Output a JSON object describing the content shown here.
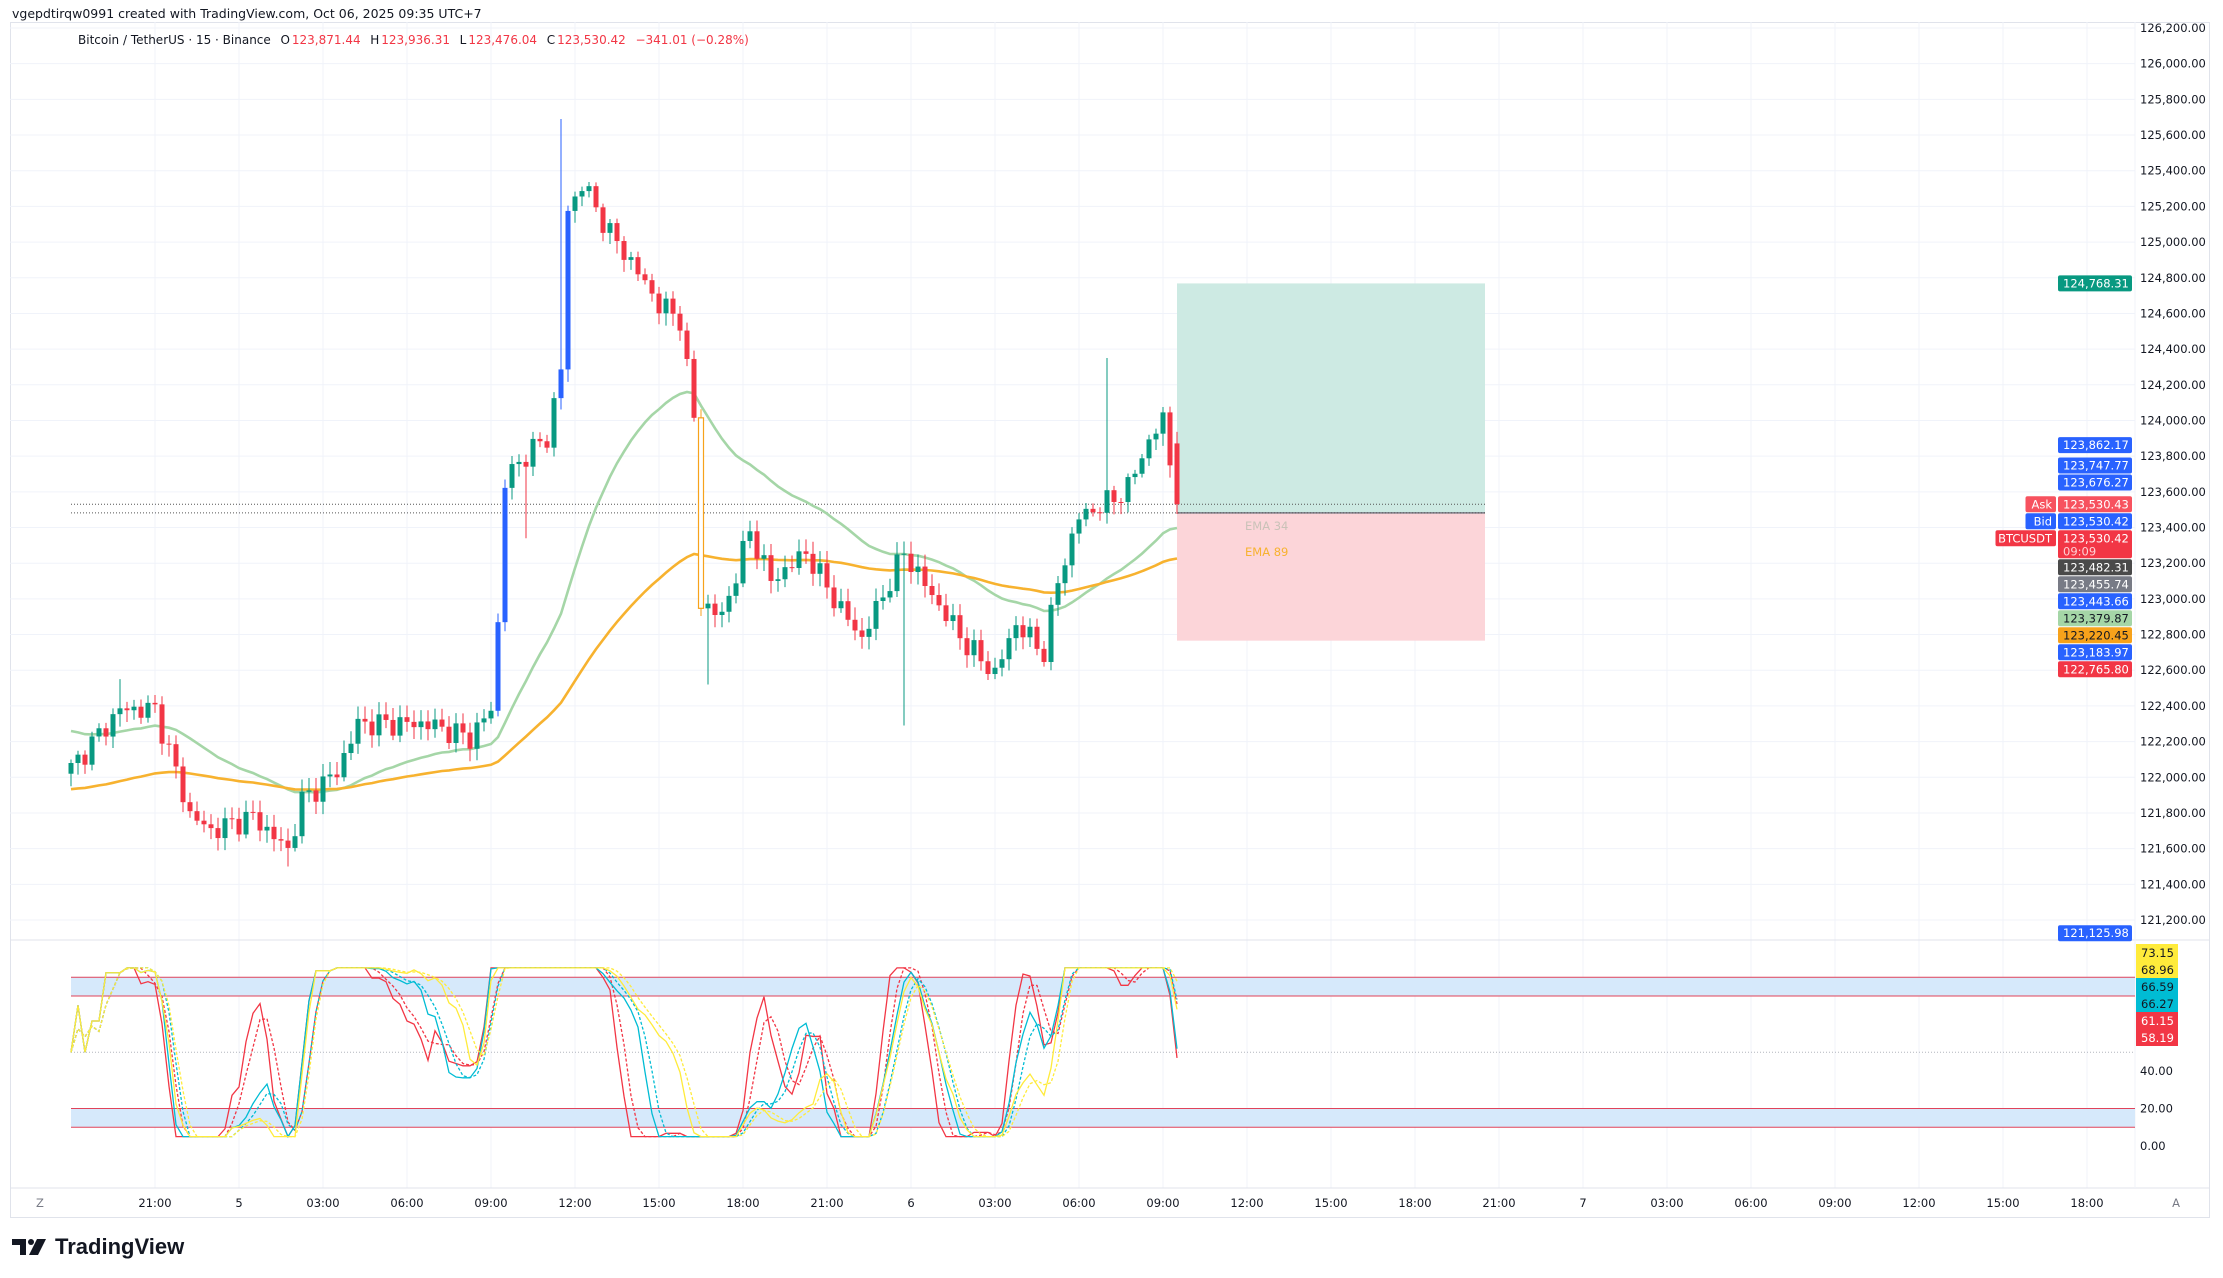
{
  "credit": "vgepdtirqw0991 created with TradingView.com, Oct 06, 2025 09:35 UTC+7",
  "legend": {
    "symbol": "Bitcoin / TetherUS · 15 · Binance",
    "open_label": "O",
    "open": "123,871.44",
    "high_label": "H",
    "high": "123,936.31",
    "low_label": "L",
    "low": "123,476.04",
    "close_label": "C",
    "close": "123,530.42",
    "change": "−341.01 (−0.28%)"
  },
  "logo_text": "TradingView",
  "axis_corner": {
    "left": "Z",
    "right": "A"
  },
  "colors": {
    "up": "#089981",
    "down": "#f23645",
    "blue": "#2962ff",
    "ema34": "#a5d6a7",
    "ema89": "#f7b22f",
    "profit": "#cdeae3",
    "loss": "#fcd5d9"
  },
  "chart_data": {
    "type": "candlestick",
    "title": "Bitcoin / TetherUS · 15 · Binance",
    "interval_minutes": 15,
    "candle_count": 159,
    "close_keyframes": [
      [
        0,
        122050
      ],
      [
        7,
        122380
      ],
      [
        12,
        122380
      ],
      [
        15,
        122030
      ],
      [
        17,
        121790
      ],
      [
        20,
        121700
      ],
      [
        26,
        121780
      ],
      [
        31,
        121590
      ],
      [
        33,
        121870
      ],
      [
        38,
        122030
      ],
      [
        41,
        122300
      ],
      [
        51,
        122300
      ],
      [
        57,
        122220
      ],
      [
        60,
        122380
      ],
      [
        61,
        122860
      ],
      [
        62,
        123660
      ],
      [
        65,
        123810
      ],
      [
        68,
        123900
      ],
      [
        70,
        124290
      ],
      [
        71,
        125170
      ],
      [
        73,
        125330
      ],
      [
        77,
        125050
      ],
      [
        80,
        124890
      ],
      [
        84,
        124650
      ],
      [
        87,
        124570
      ],
      [
        89,
        124010
      ],
      [
        90,
        122980
      ],
      [
        93,
        122900
      ],
      [
        97,
        123380
      ],
      [
        100,
        123100
      ],
      [
        105,
        123260
      ],
      [
        110,
        122940
      ],
      [
        113,
        122780
      ],
      [
        116,
        123020
      ],
      [
        119,
        123260
      ],
      [
        123,
        123020
      ],
      [
        128,
        122740
      ],
      [
        132,
        122580
      ],
      [
        135,
        122860
      ],
      [
        139,
        122700
      ],
      [
        141,
        123100
      ],
      [
        144,
        123460
      ],
      [
        148,
        123540
      ],
      [
        151,
        123620
      ],
      [
        153,
        123810
      ],
      [
        156,
        124010
      ],
      [
        158,
        123530
      ]
    ],
    "wick_extremes": [
      [
        70,
        "high",
        125690
      ],
      [
        148,
        "high",
        124350
      ],
      [
        119,
        "low",
        122290
      ],
      [
        91,
        "low",
        122520
      ],
      [
        65,
        "low",
        123340
      ],
      [
        31,
        "low",
        121500
      ],
      [
        7,
        "high",
        122550
      ]
    ],
    "last_candle": {
      "open": 123871.44,
      "high": 123936.31,
      "low": 123476.04,
      "close": 123530.42
    },
    "highlight_candles": [
      [
        61,
        "blue"
      ],
      [
        62,
        "blue"
      ],
      [
        70,
        "blue"
      ],
      [
        71,
        "blue"
      ],
      [
        90,
        "orange"
      ]
    ],
    "ema": [
      {
        "name": "EMA 34",
        "length": 34,
        "seed": 122270,
        "color": "#a5d6a7"
      },
      {
        "name": "EMA 89",
        "length": 89,
        "seed": 121930,
        "color": "#f7b22f"
      }
    ],
    "ylim": [
      121100,
      126250
    ],
    "y_ticks": [
      "126,200.00",
      "126,000.00",
      "125,800.00",
      "125,600.00",
      "125,400.00",
      "125,200.00",
      "125,000.00",
      "124,800.00",
      "124,600.00",
      "124,400.00",
      "124,200.00",
      "124,000.00",
      "123,800.00",
      "123,600.00",
      "123,400.00",
      "123,200.00",
      "123,000.00",
      "122,800.00",
      "122,600.00",
      "122,400.00",
      "122,200.00",
      "122,000.00",
      "121,800.00",
      "121,600.00",
      "121,400.00",
      "121,200.00"
    ],
    "x_ticks": [
      {
        "i": 12,
        "t": "21:00"
      },
      {
        "i": 24,
        "t": "5"
      },
      {
        "i": 36,
        "t": "03:00"
      },
      {
        "i": 48,
        "t": "06:00"
      },
      {
        "i": 60,
        "t": "09:00"
      },
      {
        "i": 72,
        "t": "12:00"
      },
      {
        "i": 84,
        "t": "15:00"
      },
      {
        "i": 96,
        "t": "18:00"
      },
      {
        "i": 108,
        "t": "21:00"
      },
      {
        "i": 120,
        "t": "6"
      },
      {
        "i": 132,
        "t": "03:00"
      },
      {
        "i": 144,
        "t": "06:00"
      },
      {
        "i": 156,
        "t": "09:00"
      },
      {
        "i": 168,
        "t": "12:00"
      },
      {
        "i": 180,
        "t": "15:00"
      },
      {
        "i": 192,
        "t": "18:00"
      },
      {
        "i": 204,
        "t": "21:00"
      },
      {
        "i": 216,
        "t": "7"
      },
      {
        "i": 228,
        "t": "03:00"
      },
      {
        "i": 240,
        "t": "06:00"
      },
      {
        "i": 252,
        "t": "09:00"
      },
      {
        "i": 264,
        "t": "12:00"
      },
      {
        "i": 276,
        "t": "15:00"
      },
      {
        "i": 288,
        "t": "18:00"
      }
    ],
    "position": {
      "start_index": 158,
      "end_index": 202,
      "target": 124768.31,
      "entry": 123482.31,
      "stop": 122765.8
    },
    "price_labels": [
      {
        "price": 124768.31,
        "text": "124,768.31",
        "bg": "#089981",
        "fg": "#fff"
      },
      {
        "price": 123862.17,
        "text": "123,862.17",
        "bg": "#2962ff",
        "fg": "#fff"
      },
      {
        "price": 123747.77,
        "text": "123,747.77",
        "bg": "#2962ff",
        "fg": "#fff"
      },
      {
        "price": 123676.27,
        "text": "123,676.27",
        "bg": "#2962ff",
        "fg": "#fff"
      },
      {
        "price": 123530.43,
        "text": "123,530.43",
        "bg": "#f7525f",
        "fg": "#fff",
        "tag": "Ask"
      },
      {
        "price": 123530.42,
        "text": "123,530.42",
        "bg": "#2962ff",
        "fg": "#fff",
        "tag": "Bid"
      },
      {
        "price": 123530.42,
        "text": "123,530.42",
        "bg": "#f23645",
        "fg": "#fff",
        "tag": "BTCUSDT",
        "sub": "09:09"
      },
      {
        "price": 123482.31,
        "text": "123,482.31",
        "bg": "#4a4a4a",
        "fg": "#fff"
      },
      {
        "price": 123455.74,
        "text": "123,455.74",
        "bg": "#787b86",
        "fg": "#fff"
      },
      {
        "price": 123443.66,
        "text": "123,443.66",
        "bg": "#2962ff",
        "fg": "#fff"
      },
      {
        "price": 123379.87,
        "text": "123,379.87",
        "bg": "#a5d6a7",
        "fg": "#131722"
      },
      {
        "price": 123220.45,
        "text": "123,220.45",
        "bg": "#f7a21b",
        "fg": "#131722"
      },
      {
        "price": 123183.97,
        "text": "123,183.97",
        "bg": "#2962ff",
        "fg": "#fff"
      },
      {
        "price": 122765.8,
        "text": "122,765.80",
        "bg": "#f23645",
        "fg": "#fff"
      },
      {
        "price": 121125.98,
        "text": "121,125.98",
        "bg": "#2962ff",
        "fg": "#fff"
      }
    ],
    "ema_labels": [
      "EMA 34",
      "EMA 89"
    ]
  },
  "oscillator": {
    "ylim": [
      0,
      100
    ],
    "y_ticks": [
      "40.00",
      "20.00",
      "0.00"
    ],
    "y_tick_values": [
      40,
      20,
      0
    ],
    "bands": [
      [
        80,
        90
      ],
      [
        10,
        20
      ]
    ],
    "midline": 50,
    "series": [
      {
        "name": "fast",
        "period": 8,
        "color": "#f23645",
        "k": "61.15",
        "d": "58.19"
      },
      {
        "name": "mid",
        "period": 12,
        "color": "#00bcd4",
        "k": "66.59",
        "d": "66.27"
      },
      {
        "name": "slow",
        "period": 18,
        "color": "#ffeb3b",
        "k": "73.15",
        "d": "68.96"
      }
    ],
    "labels": [
      {
        "text": "73.15",
        "bg": "#ffeb3b",
        "fg": "#131722"
      },
      {
        "text": "68.96",
        "bg": "#ffeb3b",
        "fg": "#131722"
      },
      {
        "text": "66.59",
        "bg": "#00bcd4",
        "fg": "#131722"
      },
      {
        "text": "66.27",
        "bg": "#00bcd4",
        "fg": "#131722"
      },
      {
        "text": "61.15",
        "bg": "#f23645",
        "fg": "#fff"
      },
      {
        "text": "58.19",
        "bg": "#f23645",
        "fg": "#fff"
      }
    ]
  }
}
